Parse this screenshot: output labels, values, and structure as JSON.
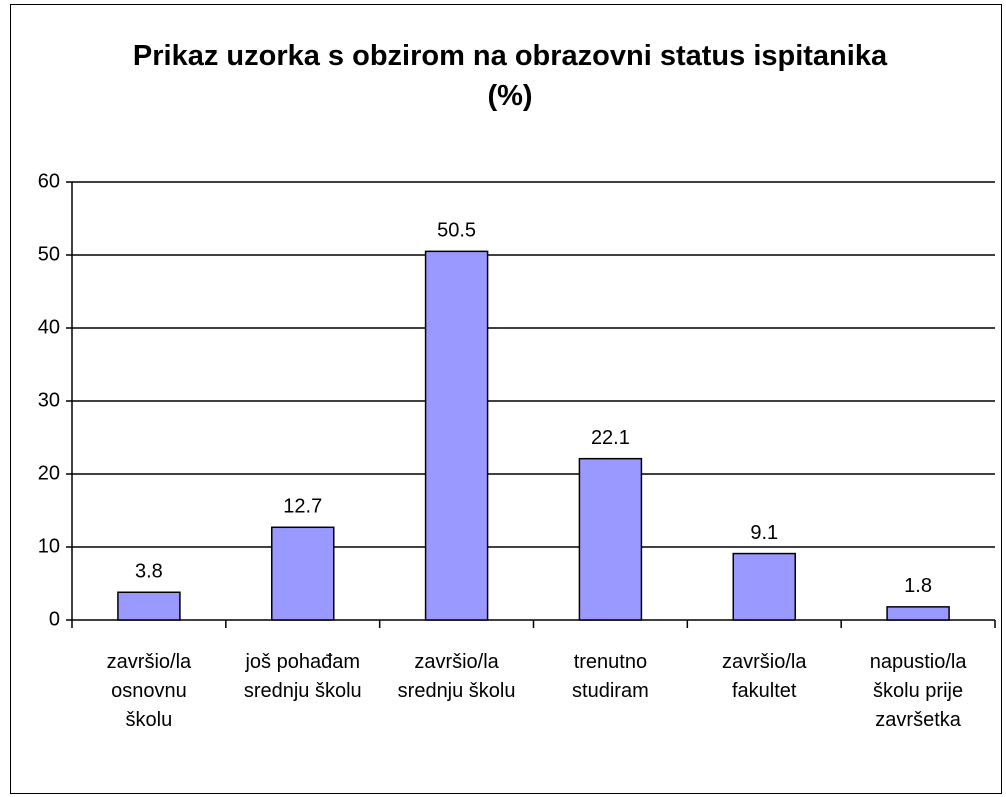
{
  "chart_data": {
    "type": "bar",
    "title": "Prikaz uzorka s obzirom na obrazovni status ispitanika (%)",
    "categories": [
      "završio/la osnovnu školu",
      "još pohađam srednju školu",
      "završio/la srednju školu",
      "trenutno studiram",
      "završio/la fakultet",
      "napustio/la školu prije završetka"
    ],
    "values": [
      3.8,
      12.7,
      50.5,
      22.1,
      9.1,
      1.8
    ],
    "color": "#9999ff",
    "ylim": [
      0,
      60
    ],
    "yticks": [
      0,
      10,
      20,
      30,
      40,
      50,
      60
    ],
    "grid": true
  }
}
